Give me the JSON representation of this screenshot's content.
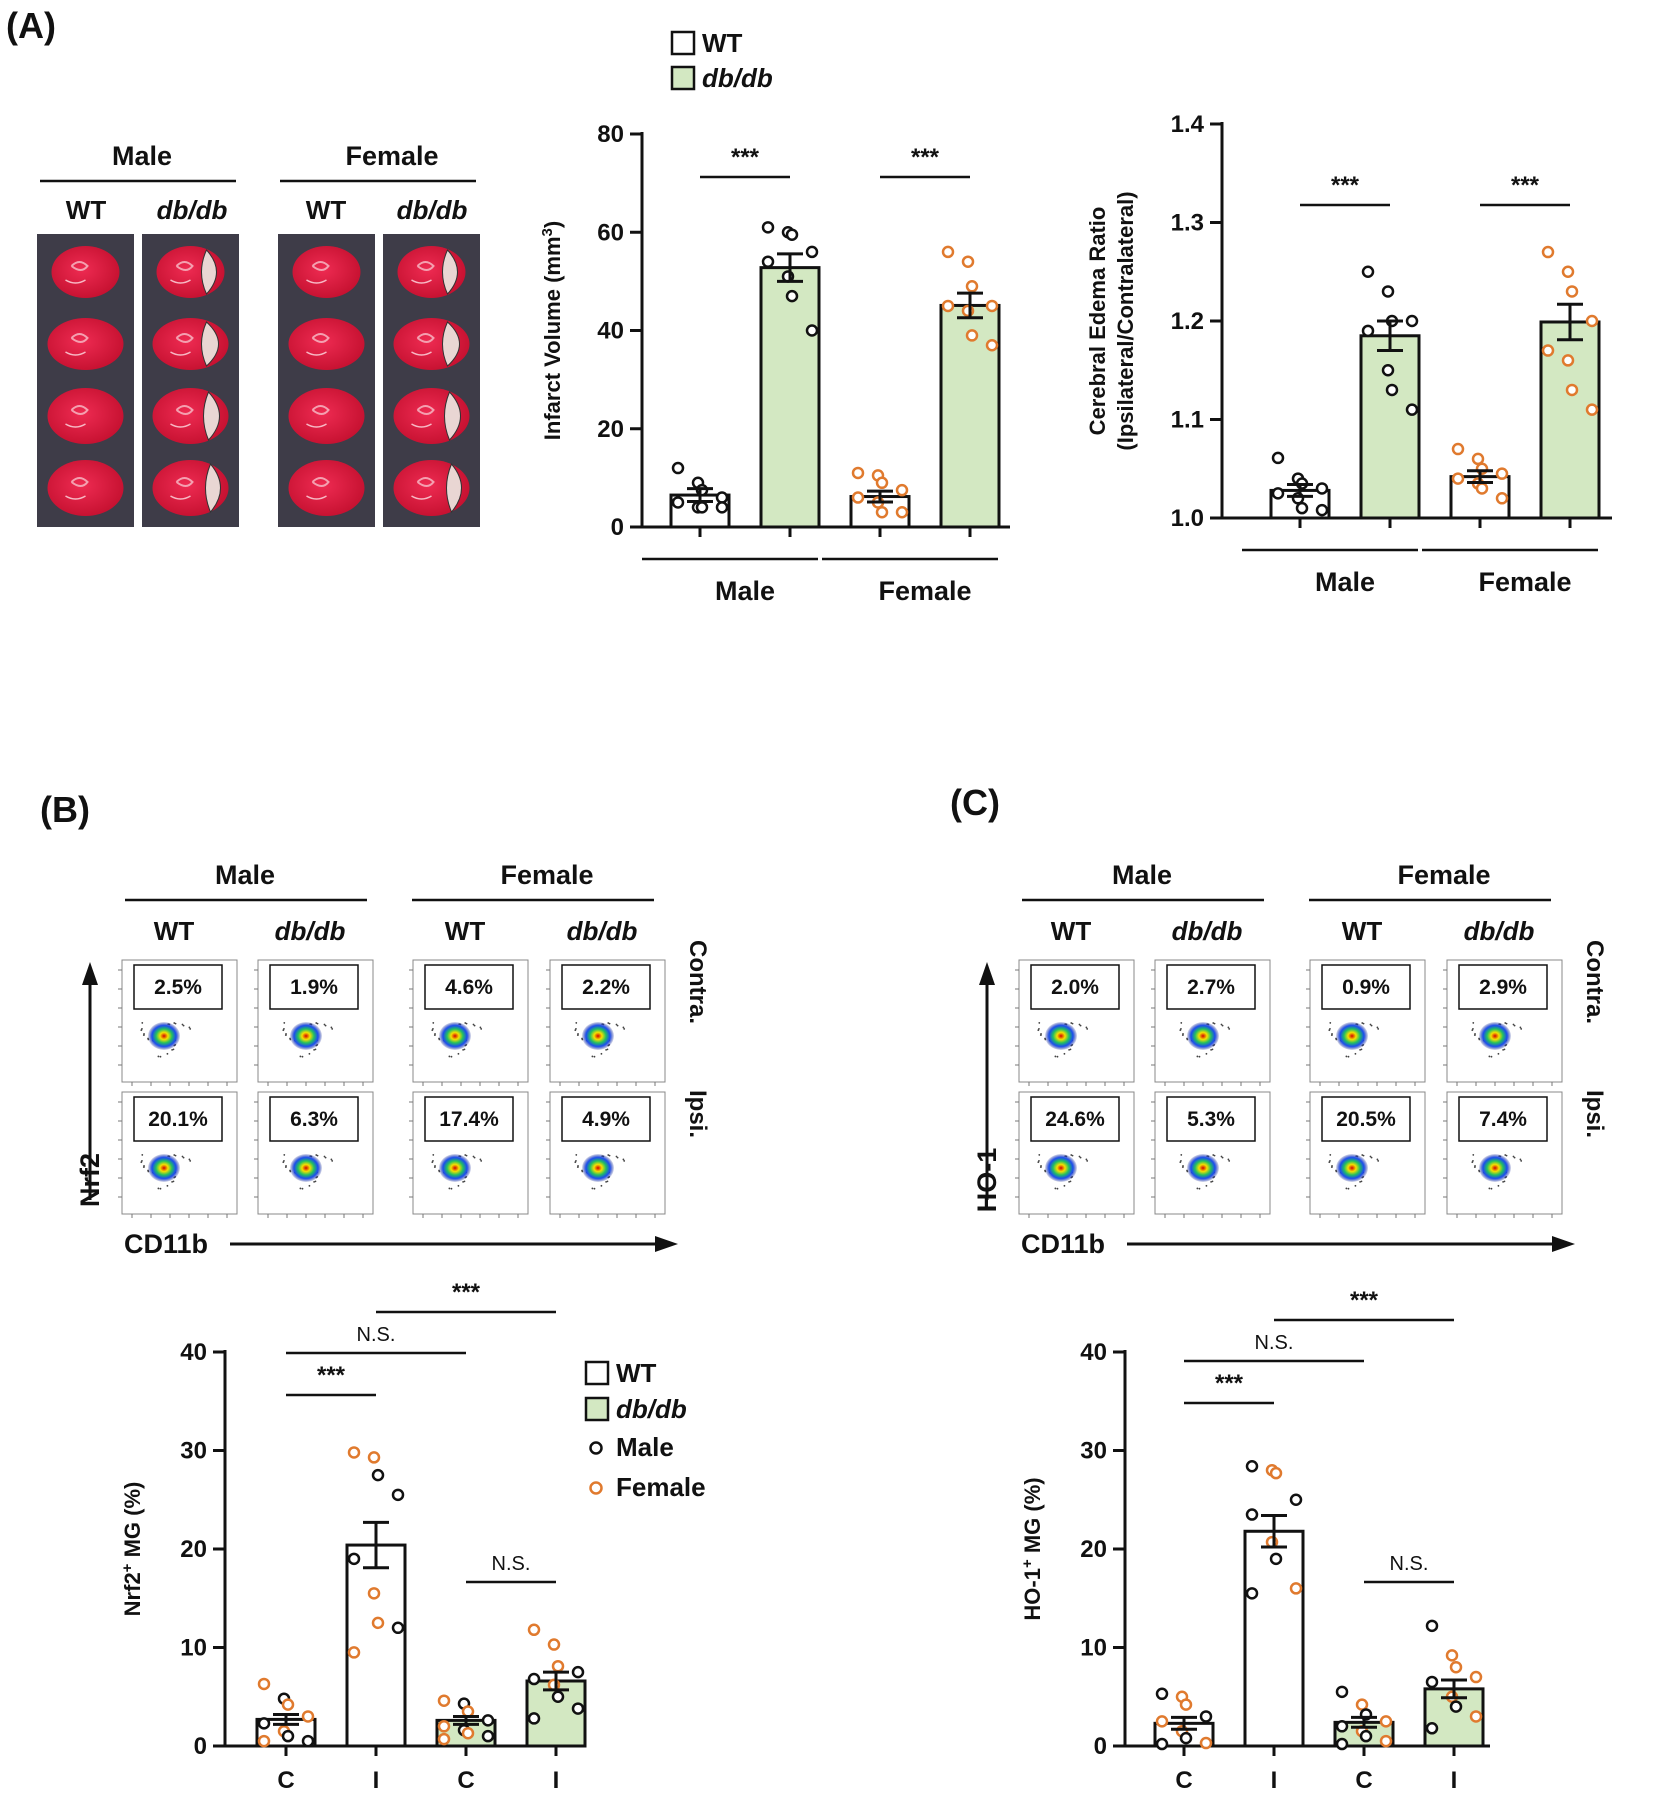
{
  "figure": {
    "panels": {
      "a": "(A)",
      "b": "(B)",
      "c": "(C)"
    },
    "legend_top": {
      "wt": "WT",
      "dbdb": "db/db"
    },
    "legend_b": {
      "wt": "WT",
      "dbdb": "db/db",
      "male": "Male",
      "female": "Female"
    },
    "colors": {
      "green": "#d3e8c2",
      "male": "#111111",
      "female": "#e07a2e",
      "tissue": "#d7193c"
    }
  },
  "panel_a": {
    "sex": [
      "Male",
      "Female"
    ],
    "genotype": [
      "WT",
      "db/db",
      "WT",
      "db/db"
    ],
    "slice_count": 4,
    "infarct_slices": [
      false,
      true,
      false,
      true
    ]
  },
  "panel_b": {
    "sex": [
      "Male",
      "Female"
    ],
    "genotype": [
      "WT",
      "db/db",
      "WT",
      "db/db"
    ],
    "y_axis": "Nrf2",
    "x_axis": "CD11b",
    "rows": [
      "Contra.",
      "Ipsi."
    ],
    "contra_pct": [
      "2.5%",
      "1.9%",
      "4.6%",
      "2.2%"
    ],
    "ipsi_pct": [
      "20.1%",
      "6.3%",
      "17.4%",
      "4.9%"
    ]
  },
  "panel_c": {
    "sex": [
      "Male",
      "Female"
    ],
    "genotype": [
      "WT",
      "db/db",
      "WT",
      "db/db"
    ],
    "y_axis": "HO-1",
    "x_axis": "CD11b",
    "rows": [
      "Contra.",
      "Ipsi."
    ],
    "contra_pct": [
      "2.0%",
      "2.7%",
      "0.9%",
      "2.9%"
    ],
    "ipsi_pct": [
      "24.6%",
      "5.3%",
      "20.5%",
      "7.4%"
    ]
  },
  "chart_data": [
    {
      "id": "infarct",
      "type": "bar",
      "ylabel": "Infarct Volume (mm",
      "ylabel_sup": "3",
      "ylabel_end": ")",
      "ylim": [
        0,
        80
      ],
      "yticks": [
        0,
        20,
        40,
        60,
        80
      ],
      "group_labels": [
        "Male",
        "Female"
      ],
      "bars": [
        {
          "group": "Male",
          "genotype": "WT",
          "mean": 6.5,
          "sem": 1.3,
          "color": "white",
          "points": [
            {
              "v": 12,
              "c": "m"
            },
            {
              "v": 9,
              "c": "m"
            },
            {
              "v": 7.5,
              "c": "m"
            },
            {
              "v": 6,
              "c": "m"
            },
            {
              "v": 5,
              "c": "m"
            },
            {
              "v": 4,
              "c": "m"
            },
            {
              "v": 4,
              "c": "m"
            },
            {
              "v": 4,
              "c": "m"
            }
          ]
        },
        {
          "group": "Male",
          "genotype": "db/db",
          "mean": 52.8,
          "sem": 2.8,
          "color": "green",
          "points": [
            {
              "v": 61,
              "c": "m"
            },
            {
              "v": 60,
              "c": "m"
            },
            {
              "v": 59.5,
              "c": "m"
            },
            {
              "v": 56,
              "c": "m"
            },
            {
              "v": 54,
              "c": "m"
            },
            {
              "v": 51,
              "c": "m"
            },
            {
              "v": 47,
              "c": "m"
            },
            {
              "v": 40,
              "c": "m"
            }
          ]
        },
        {
          "group": "Female",
          "genotype": "WT",
          "mean": 6.2,
          "sem": 1.1,
          "color": "white",
          "points": [
            {
              "v": 11,
              "c": "f"
            },
            {
              "v": 10.5,
              "c": "f"
            },
            {
              "v": 9,
              "c": "f"
            },
            {
              "v": 7.5,
              "c": "f"
            },
            {
              "v": 6,
              "c": "f"
            },
            {
              "v": 5,
              "c": "f"
            },
            {
              "v": 3,
              "c": "f"
            },
            {
              "v": 3,
              "c": "f"
            }
          ]
        },
        {
          "group": "Female",
          "genotype": "db/db",
          "mean": 45.1,
          "sem": 2.5,
          "color": "green",
          "points": [
            {
              "v": 56,
              "c": "f"
            },
            {
              "v": 54,
              "c": "f"
            },
            {
              "v": 49,
              "c": "f"
            },
            {
              "v": 45,
              "c": "f"
            },
            {
              "v": 45,
              "c": "f"
            },
            {
              "v": 44,
              "c": "f"
            },
            {
              "v": 39,
              "c": "f"
            },
            {
              "v": 37,
              "c": "f"
            }
          ]
        }
      ],
      "sig": [
        {
          "label": "***",
          "from": 0,
          "to": 1
        },
        {
          "label": "***",
          "from": 2,
          "to": 3
        }
      ]
    },
    {
      "id": "edema",
      "type": "bar",
      "ylabel": "Cerebral Edema Ratio",
      "ylabel2": "(Ipsilateral/Contralateral)",
      "ylim": [
        1.0,
        1.4
      ],
      "yticks": [
        "1.0",
        "1.1",
        "1.2",
        "1.3",
        "1.4"
      ],
      "group_labels": [
        "Male",
        "Female"
      ],
      "bars": [
        {
          "group": "Male",
          "genotype": "WT",
          "mean": 1.028,
          "sem": 0.006,
          "color": "white",
          "points": [
            {
              "v": 1.061,
              "c": "m"
            },
            {
              "v": 1.04,
              "c": "m"
            },
            {
              "v": 1.035,
              "c": "m"
            },
            {
              "v": 1.03,
              "c": "m"
            },
            {
              "v": 1.025,
              "c": "m"
            },
            {
              "v": 1.02,
              "c": "m"
            },
            {
              "v": 1.01,
              "c": "m"
            },
            {
              "v": 1.008,
              "c": "m"
            }
          ]
        },
        {
          "group": "Male",
          "genotype": "db/db",
          "mean": 1.185,
          "sem": 0.015,
          "color": "green",
          "points": [
            {
              "v": 1.25,
              "c": "m"
            },
            {
              "v": 1.23,
              "c": "m"
            },
            {
              "v": 1.2,
              "c": "m"
            },
            {
              "v": 1.2,
              "c": "m"
            },
            {
              "v": 1.19,
              "c": "m"
            },
            {
              "v": 1.15,
              "c": "m"
            },
            {
              "v": 1.13,
              "c": "m"
            },
            {
              "v": 1.11,
              "c": "m"
            }
          ]
        },
        {
          "group": "Female",
          "genotype": "WT",
          "mean": 1.042,
          "sem": 0.006,
          "color": "white",
          "points": [
            {
              "v": 1.07,
              "c": "f"
            },
            {
              "v": 1.06,
              "c": "f"
            },
            {
              "v": 1.05,
              "c": "f"
            },
            {
              "v": 1.045,
              "c": "f"
            },
            {
              "v": 1.04,
              "c": "f"
            },
            {
              "v": 1.035,
              "c": "f"
            },
            {
              "v": 1.03,
              "c": "f"
            },
            {
              "v": 1.02,
              "c": "f"
            }
          ]
        },
        {
          "group": "Female",
          "genotype": "db/db",
          "mean": 1.199,
          "sem": 0.018,
          "color": "green",
          "points": [
            {
              "v": 1.27,
              "c": "f"
            },
            {
              "v": 1.25,
              "c": "f"
            },
            {
              "v": 1.23,
              "c": "f"
            },
            {
              "v": 1.2,
              "c": "f"
            },
            {
              "v": 1.17,
              "c": "f"
            },
            {
              "v": 1.16,
              "c": "f"
            },
            {
              "v": 1.13,
              "c": "f"
            },
            {
              "v": 1.11,
              "c": "f"
            }
          ]
        }
      ],
      "sig": [
        {
          "label": "***",
          "from": 0,
          "to": 1
        },
        {
          "label": "***",
          "from": 2,
          "to": 3
        }
      ]
    },
    {
      "id": "nrf2",
      "type": "bar",
      "ylabel": "Nrf2",
      "ylabel_sup": "+",
      "ylabel_end": " MG (%)",
      "ylim": [
        0,
        40
      ],
      "yticks": [
        0,
        10,
        20,
        30,
        40
      ],
      "categories": [
        "C",
        "I",
        "C",
        "I"
      ],
      "bars": [
        {
          "genotype": "WT",
          "mean": 2.7,
          "sem": 0.5,
          "color": "white",
          "points": [
            {
              "v": 6.3,
              "c": "f"
            },
            {
              "v": 4.8,
              "c": "m"
            },
            {
              "v": 4.2,
              "c": "f"
            },
            {
              "v": 3,
              "c": "f"
            },
            {
              "v": 2.3,
              "c": "m"
            },
            {
              "v": 1.5,
              "c": "f"
            },
            {
              "v": 1,
              "c": "m"
            },
            {
              "v": 0.5,
              "c": "m"
            },
            {
              "v": 0.5,
              "c": "f"
            }
          ]
        },
        {
          "genotype": "WT",
          "mean": 20.4,
          "sem": 2.3,
          "color": "white",
          "points": [
            {
              "v": 29.8,
              "c": "f"
            },
            {
              "v": 29.3,
              "c": "f"
            },
            {
              "v": 27.5,
              "c": "m"
            },
            {
              "v": 25.5,
              "c": "m"
            },
            {
              "v": 19,
              "c": "m"
            },
            {
              "v": 15.5,
              "c": "f"
            },
            {
              "v": 12.5,
              "c": "f"
            },
            {
              "v": 12,
              "c": "m"
            },
            {
              "v": 9.5,
              "c": "f"
            }
          ]
        },
        {
          "genotype": "db/db",
          "mean": 2.6,
          "sem": 0.4,
          "color": "green",
          "points": [
            {
              "v": 4.6,
              "c": "f"
            },
            {
              "v": 4.3,
              "c": "m"
            },
            {
              "v": 3.5,
              "c": "f"
            },
            {
              "v": 2.6,
              "c": "m"
            },
            {
              "v": 2,
              "c": "f"
            },
            {
              "v": 1.6,
              "c": "m"
            },
            {
              "v": 1.3,
              "c": "f"
            },
            {
              "v": 1,
              "c": "m"
            },
            {
              "v": 0.7,
              "c": "f"
            }
          ]
        },
        {
          "genotype": "db/db",
          "mean": 6.6,
          "sem": 0.9,
          "color": "green",
          "points": [
            {
              "v": 11.8,
              "c": "f"
            },
            {
              "v": 10.3,
              "c": "f"
            },
            {
              "v": 8.1,
              "c": "f"
            },
            {
              "v": 7.5,
              "c": "m"
            },
            {
              "v": 6.8,
              "c": "m"
            },
            {
              "v": 6.2,
              "c": "f"
            },
            {
              "v": 5,
              "c": "m"
            },
            {
              "v": 3.8,
              "c": "m"
            },
            {
              "v": 2.8,
              "c": "m"
            }
          ]
        }
      ],
      "sig": [
        {
          "label": "***",
          "from": 0,
          "to": 1,
          "level": 1
        },
        {
          "label": "N.S.",
          "from": 0,
          "to": 2,
          "level": 2
        },
        {
          "label": "***",
          "from": 1,
          "to": 3,
          "level": 3
        },
        {
          "label": "N.S.",
          "from": 2,
          "to": 3,
          "level": 0
        }
      ]
    },
    {
      "id": "ho1",
      "type": "bar",
      "ylabel": "HO-1",
      "ylabel_sup": "+",
      "ylabel_end": " MG (%)",
      "ylim": [
        0,
        40
      ],
      "yticks": [
        0,
        10,
        20,
        30,
        40
      ],
      "categories": [
        "C",
        "I",
        "C",
        "I"
      ],
      "bars": [
        {
          "genotype": "WT",
          "mean": 2.3,
          "sem": 0.6,
          "color": "white",
          "points": [
            {
              "v": 5.3,
              "c": "m"
            },
            {
              "v": 5,
              "c": "f"
            },
            {
              "v": 4.2,
              "c": "f"
            },
            {
              "v": 3,
              "c": "m"
            },
            {
              "v": 2.5,
              "c": "f"
            },
            {
              "v": 1.5,
              "c": "f"
            },
            {
              "v": 0.8,
              "c": "m"
            },
            {
              "v": 0.3,
              "c": "f"
            },
            {
              "v": 0.2,
              "c": "m"
            }
          ]
        },
        {
          "genotype": "WT",
          "mean": 21.8,
          "sem": 1.6,
          "color": "white",
          "points": [
            {
              "v": 28.4,
              "c": "m"
            },
            {
              "v": 28,
              "c": "f"
            },
            {
              "v": 27.7,
              "c": "f"
            },
            {
              "v": 25,
              "c": "m"
            },
            {
              "v": 23.5,
              "c": "m"
            },
            {
              "v": 20.7,
              "c": "f"
            },
            {
              "v": 19,
              "c": "m"
            },
            {
              "v": 16,
              "c": "f"
            },
            {
              "v": 15.5,
              "c": "m"
            }
          ]
        },
        {
          "genotype": "db/db",
          "mean": 2.4,
          "sem": 0.5,
          "color": "green",
          "points": [
            {
              "v": 5.5,
              "c": "m"
            },
            {
              "v": 4.2,
              "c": "f"
            },
            {
              "v": 3.2,
              "c": "m"
            },
            {
              "v": 2.5,
              "c": "f"
            },
            {
              "v": 2,
              "c": "m"
            },
            {
              "v": 1.5,
              "c": "f"
            },
            {
              "v": 1,
              "c": "m"
            },
            {
              "v": 0.5,
              "c": "f"
            },
            {
              "v": 0.2,
              "c": "m"
            }
          ]
        },
        {
          "genotype": "db/db",
          "mean": 5.8,
          "sem": 0.9,
          "color": "green",
          "points": [
            {
              "v": 12.2,
              "c": "m"
            },
            {
              "v": 9.2,
              "c": "f"
            },
            {
              "v": 8,
              "c": "f"
            },
            {
              "v": 7,
              "c": "f"
            },
            {
              "v": 6.5,
              "c": "m"
            },
            {
              "v": 5,
              "c": "f"
            },
            {
              "v": 4,
              "c": "m"
            },
            {
              "v": 3,
              "c": "f"
            },
            {
              "v": 1.8,
              "c": "m"
            }
          ]
        }
      ],
      "sig": [
        {
          "label": "***",
          "from": 0,
          "to": 1,
          "level": 1
        },
        {
          "label": "N.S.",
          "from": 0,
          "to": 2,
          "level": 2
        },
        {
          "label": "***",
          "from": 1,
          "to": 3,
          "level": 3
        },
        {
          "label": "N.S.",
          "from": 2,
          "to": 3,
          "level": 0
        }
      ]
    }
  ]
}
